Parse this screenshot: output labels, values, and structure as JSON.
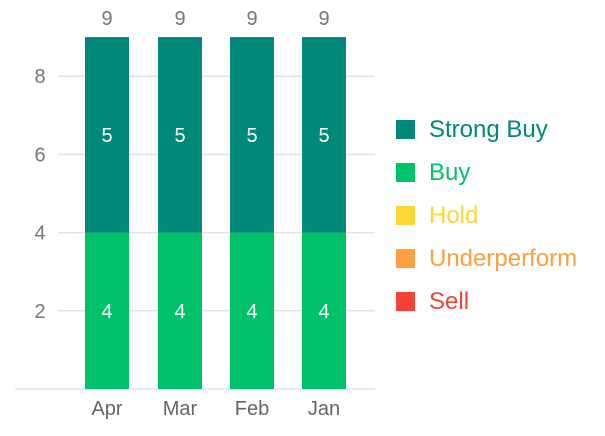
{
  "chart_data": {
    "type": "bar",
    "stacked": true,
    "categories": [
      "Apr",
      "Mar",
      "Feb",
      "Jan"
    ],
    "series": [
      {
        "name": "Strong Buy",
        "color": "#00897b",
        "values": [
          5,
          5,
          5,
          5
        ]
      },
      {
        "name": "Buy",
        "color": "#00c26a",
        "values": [
          4,
          4,
          4,
          4
        ]
      },
      {
        "name": "Hold",
        "color": "#fdd835",
        "values": [
          0,
          0,
          0,
          0
        ]
      },
      {
        "name": "Underperform",
        "color": "#ffa040",
        "values": [
          0,
          0,
          0,
          0
        ]
      },
      {
        "name": "Sell",
        "color": "#f44336",
        "values": [
          0,
          0,
          0,
          0
        ]
      }
    ],
    "totals": [
      9,
      9,
      9,
      9
    ],
    "yticks": [
      2,
      4,
      6,
      8
    ],
    "ylim": [
      0,
      9
    ],
    "grid": true,
    "legend_position": "right"
  }
}
